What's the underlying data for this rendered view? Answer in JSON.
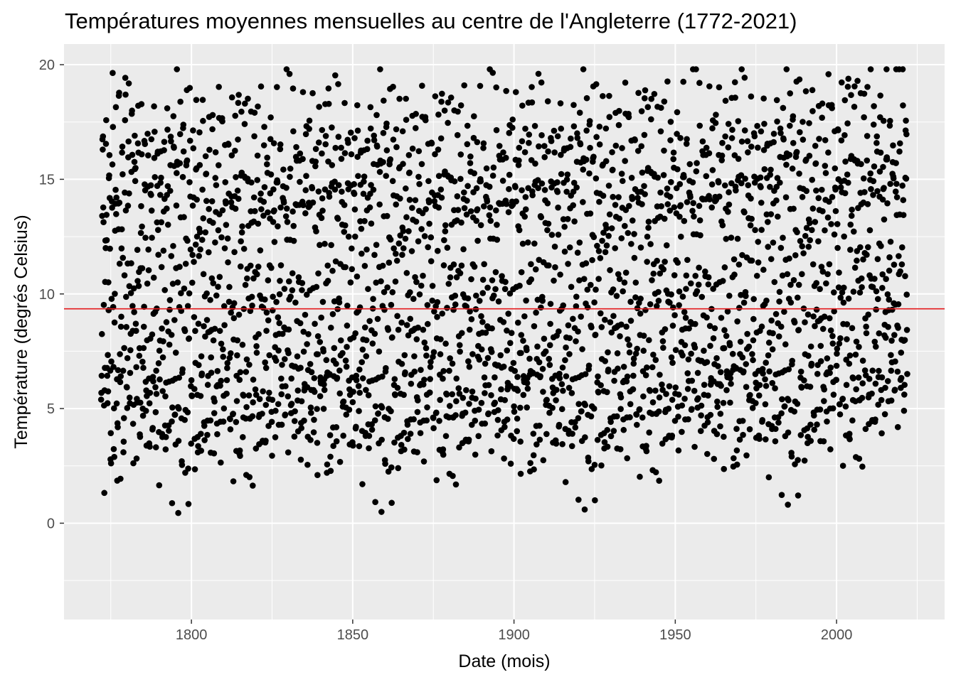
{
  "chart_data": {
    "type": "scatter",
    "title": "Températures moyennes mensuelles au centre de l'Angleterre (1772-2021)",
    "xlabel": "Date (mois)",
    "ylabel": "Température (degrés Celsius)",
    "xlim": [
      1760.5,
      2033.5
    ],
    "ylim": [
      -4.2,
      20.9
    ],
    "x_ticks": [
      1800,
      1850,
      1900,
      1950,
      2000
    ],
    "x_tick_labels": [
      "1800",
      "1850",
      "1900",
      "1950",
      "2000"
    ],
    "y_ticks": [
      0,
      5,
      10,
      15,
      20
    ],
    "y_tick_labels": [
      "0",
      "5",
      "10",
      "15",
      "20"
    ],
    "grid": true,
    "panel_background": "#ebebeb",
    "point_color": "#000000",
    "reference_line": {
      "y": 9.35,
      "color": "#e41a1c"
    },
    "series": [
      {
        "x_start": 1772,
        "x_end": 2021,
        "values_per_year": 12,
        "monthly_mean_temperature": [
          4.0,
          4.8,
          6.6,
          8.9,
          11.9,
          14.9,
          16.7,
          16.3,
          14.0,
          10.7,
          7.0,
          4.8
        ],
        "scatter_sd": 1.6,
        "trend": [
          {
            "x": 1772,
            "offset": 0.0
          },
          {
            "x": 1900,
            "offset": 0.1
          },
          {
            "x": 1990,
            "offset": 0.4
          },
          {
            "x": 2021,
            "offset": 1.2
          }
        ]
      }
    ]
  }
}
